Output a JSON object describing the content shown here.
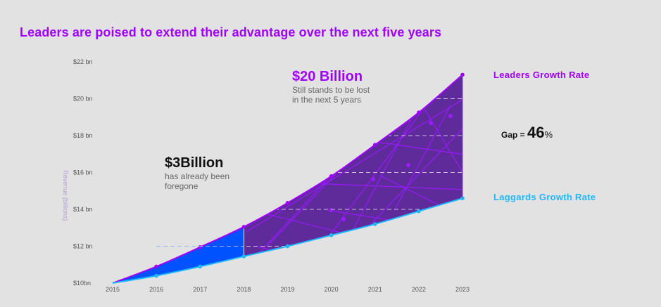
{
  "title": "Leaders are poised to extend their advantage over the next five years",
  "annotations": {
    "future_loss": {
      "headline": "$20 Billion",
      "line1": "Still stands to be lost",
      "line2": "in the next 5 years"
    },
    "past_loss": {
      "headline": "$3Billion",
      "line1": "has already been",
      "line2": "foregone"
    },
    "gap": {
      "label": "Gap = ",
      "value": "46",
      "unit": "%"
    }
  },
  "legend": {
    "leaders": "Leaders Growth Rate",
    "laggards": "Laggards Growth Rate"
  },
  "colors": {
    "leaders": "#a100ff",
    "laggards": "#1fb7ff",
    "past_fill": "#0052ff",
    "future_fill": "#5f2a9a",
    "title": "#a100ff"
  },
  "chart_data": {
    "type": "area",
    "title": "Leaders are poised to extend their advantage over the next five years",
    "xlabel": "",
    "ylabel": "Revenue (billions)",
    "x": [
      "2015",
      "2016",
      "2017",
      "2018",
      "2019",
      "2020",
      "2021",
      "2022",
      "2023"
    ],
    "ytick_labels": [
      "$10bn",
      "$12 bn",
      "$14 bn",
      "$16 bn",
      "$18 bn",
      "$20 bn",
      "$22 bn"
    ],
    "yticks": [
      10,
      12,
      14,
      16,
      18,
      20,
      22
    ],
    "ylim": [
      10,
      22
    ],
    "split_year": "2018",
    "series": [
      {
        "name": "Leaders Growth Rate",
        "values": [
          10.0,
          10.9,
          11.95,
          13.05,
          14.35,
          15.8,
          17.5,
          19.25,
          21.3
        ]
      },
      {
        "name": "Laggards Growth Rate",
        "values": [
          10.0,
          10.4,
          10.9,
          11.45,
          12.0,
          12.6,
          13.2,
          13.9,
          14.6
        ]
      }
    ],
    "grid": "dashed horizontal lines inside shaded area",
    "legend": "right"
  }
}
